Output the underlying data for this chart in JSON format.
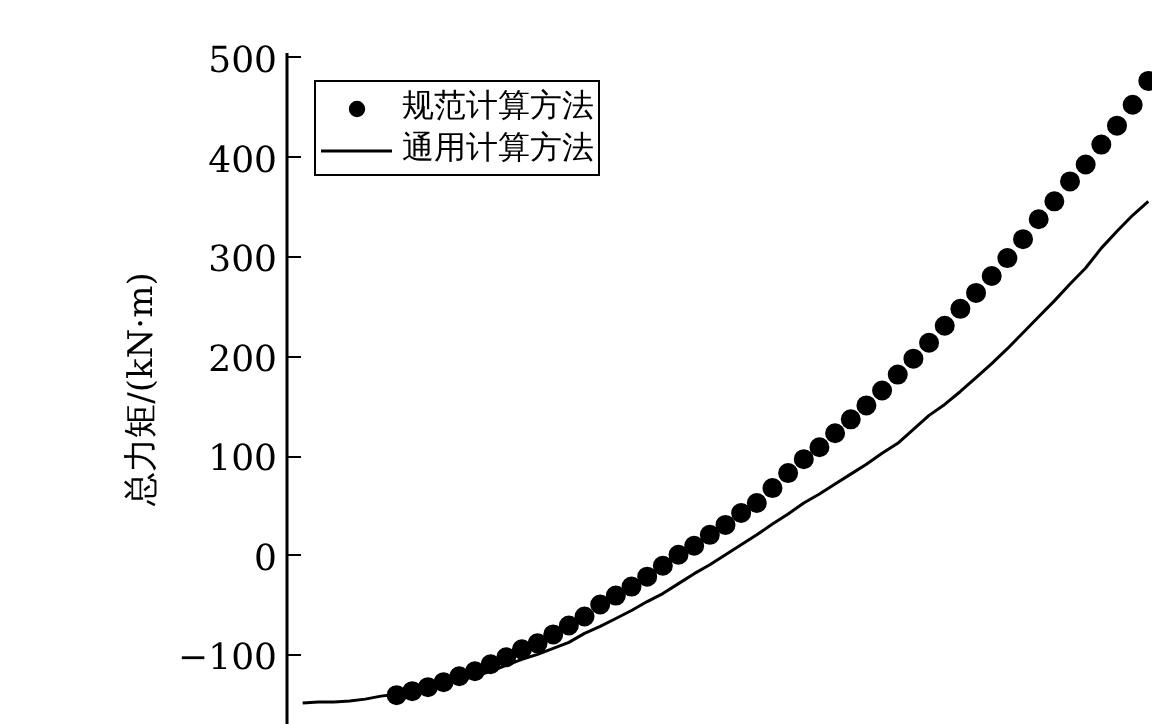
{
  "chart_data": {
    "type": "line",
    "ylabel": "总力矩/(kN·m)",
    "ylim": [
      -170,
      505
    ],
    "yticks": [
      {
        "value": -100,
        "label": "−100"
      },
      0,
      100,
      200,
      300,
      400,
      500
    ],
    "tick_labels": "y",
    "grid": false,
    "legend": "top left",
    "categories": [
      null,
      null,
      null,
      null,
      null,
      null,
      null,
      null,
      null,
      null,
      null,
      null,
      null,
      null,
      null,
      null,
      null,
      null,
      null,
      null,
      null,
      null,
      null,
      null,
      null,
      null,
      null,
      null,
      null,
      null,
      null,
      null,
      null,
      null,
      null,
      null,
      null,
      null,
      null,
      null,
      null,
      null,
      null,
      null,
      null,
      null,
      null,
      null,
      null,
      null,
      null,
      null,
      null,
      null,
      null
    ],
    "series": [
      {
        "name": "规范计算方法",
        "type": "scatter",
        "marker": "circle",
        "color": "#000000",
        "values": [
          null,
          null,
          null,
          null,
          null,
          null,
          -140,
          -136,
          -132,
          -127,
          -121,
          -116,
          -109,
          -102,
          -94,
          -88,
          -79,
          -70,
          -61,
          -49,
          -40,
          -31,
          -21,
          -10,
          1,
          10,
          21,
          31,
          43,
          53,
          68,
          83,
          97,
          109,
          123,
          137,
          151,
          166,
          182,
          198,
          214,
          231,
          248,
          264,
          281,
          299,
          318,
          338,
          356,
          376,
          393,
          413,
          432,
          453,
          477
        ]
      },
      {
        "name": "通用计算方法",
        "line_style": "solid",
        "color": "#000000",
        "values": [
          -148,
          -147,
          -147,
          -146,
          -144,
          -141,
          -139,
          -135,
          -132,
          -129,
          -125,
          -121,
          -116,
          -110,
          -104,
          -99,
          -93,
          -87,
          -78,
          -71,
          -63,
          -55,
          -46,
          -38,
          -28,
          -18,
          -9,
          1,
          11,
          21,
          32,
          42,
          53,
          62,
          72,
          82,
          92,
          103,
          113,
          127,
          141,
          152,
          165,
          179,
          193,
          208,
          224,
          240,
          256,
          273,
          289,
          309,
          326,
          342,
          356
        ]
      }
    ]
  }
}
